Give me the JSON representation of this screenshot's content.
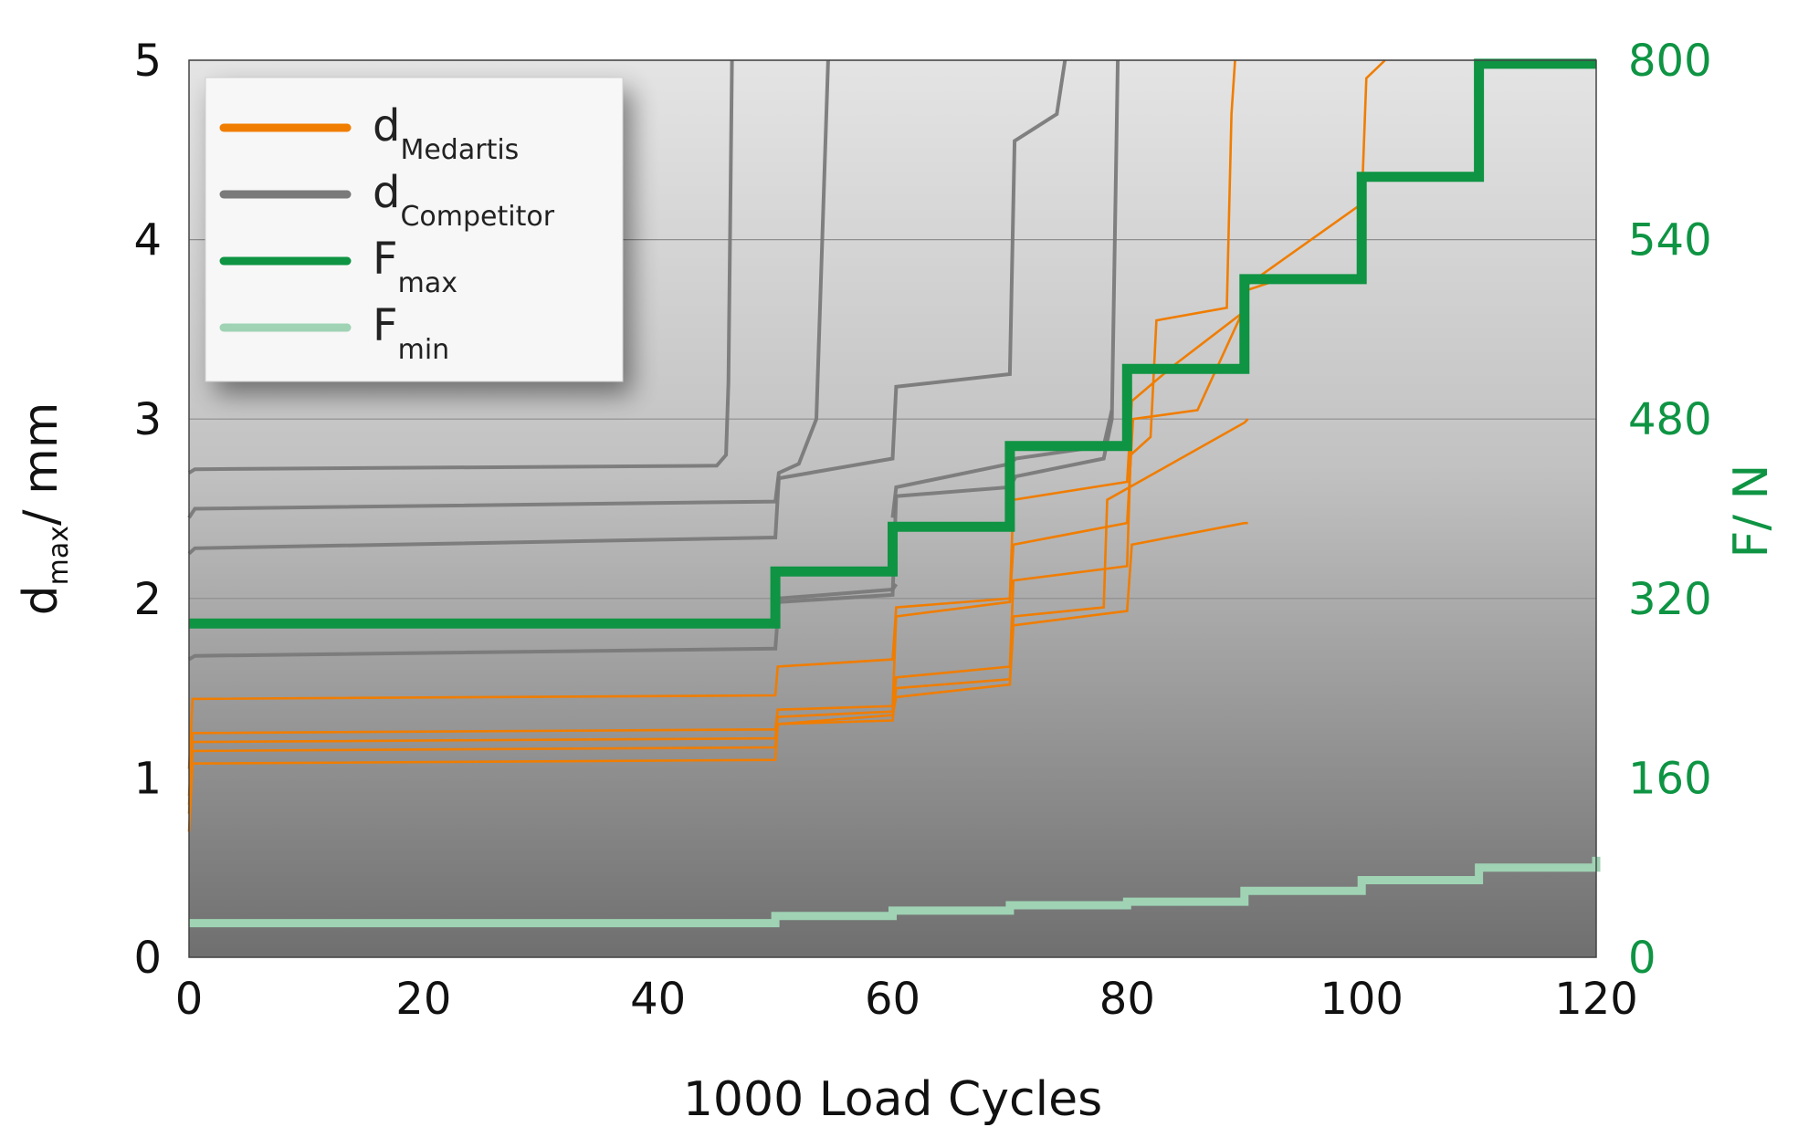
{
  "chart_data": {
    "type": "line",
    "xlabel": "1000 Load Cycles",
    "ylabel_main": "d",
    "ylabel_sub": "max",
    "ylabel_unit": "/ mm",
    "y2label": "F/ N",
    "xlim": [
      0,
      120
    ],
    "ylim": [
      0,
      5
    ],
    "y2lim": [
      0,
      800
    ],
    "x_ticks": [
      "0",
      "20",
      "40",
      "60",
      "80",
      "100",
      "120"
    ],
    "y_ticks": [
      "0",
      "1",
      "2",
      "3",
      "4",
      "5"
    ],
    "y2_ticks": [
      "0",
      "160",
      "320",
      "480",
      "540",
      "800"
    ],
    "grid": true,
    "legend_position": "top-left",
    "colors": {
      "medartis": "#f07d00",
      "competitor": "#7a7a7a",
      "fmax": "#0e9443",
      "fmin": "#9fd3b4",
      "right_axis": "#0e9443"
    },
    "legend": [
      {
        "main": "d",
        "sub": "Medartis",
        "key": "medartis"
      },
      {
        "main": "d",
        "sub": "Competitor",
        "key": "competitor"
      },
      {
        "main": "F",
        "sub": "max",
        "key": "fmax"
      },
      {
        "main": "F",
        "sub": "min",
        "key": "fmin"
      }
    ],
    "series": [
      {
        "group": "fmax",
        "step": true,
        "x": [
          0,
          50,
          60,
          70,
          80,
          90,
          100,
          110,
          120
        ],
        "y": [
          1.86,
          2.15,
          2.4,
          2.85,
          3.28,
          3.78,
          4.35,
          4.98,
          4.98
        ]
      },
      {
        "group": "fmin",
        "step": true,
        "x": [
          0,
          50,
          60,
          70,
          80,
          90,
          100,
          110,
          120
        ],
        "y": [
          0.19,
          0.23,
          0.26,
          0.29,
          0.31,
          0.37,
          0.43,
          0.5,
          0.56
        ]
      },
      {
        "group": "competitor",
        "x": [
          0,
          0.5,
          45,
          45.8,
          46,
          46.3
        ],
        "y": [
          2.7,
          2.72,
          2.74,
          2.8,
          3.2,
          5.0
        ]
      },
      {
        "group": "competitor",
        "x": [
          0,
          0.5,
          50,
          50.3,
          52,
          53.5,
          54.5
        ],
        "y": [
          2.45,
          2.5,
          2.54,
          2.7,
          2.75,
          3.0,
          5.0
        ]
      },
      {
        "group": "competitor",
        "x": [
          0,
          0.5,
          50,
          50.3,
          60,
          60.3,
          70,
          70.4,
          74,
          74.7
        ],
        "y": [
          2.25,
          2.28,
          2.34,
          2.67,
          2.78,
          3.18,
          3.25,
          4.55,
          4.7,
          5.0
        ]
      },
      {
        "group": "competitor",
        "x": [
          0,
          0.5,
          50,
          50.3,
          60,
          60.3,
          70,
          70.5,
          78,
          78.7,
          79.2
        ],
        "y": [
          1.66,
          1.68,
          1.72,
          1.98,
          2.02,
          2.57,
          2.62,
          2.68,
          2.78,
          3.0,
          5.0
        ]
      },
      {
        "group": "competitor",
        "x": [
          60,
          60.3,
          70,
          70.5,
          78,
          78.7
        ],
        "y": [
          2.45,
          2.62,
          2.75,
          2.78,
          2.85,
          3.05
        ]
      },
      {
        "group": "competitor",
        "x": [
          50,
          50.3,
          60,
          60.3
        ],
        "y": [
          2.1,
          2.0,
          2.05,
          2.08
        ]
      },
      {
        "group": "medartis",
        "x": [
          0,
          0.3,
          50,
          50.2,
          60,
          60.3,
          70,
          70.3,
          80,
          80.4,
          84,
          90,
          90.3,
          100,
          100.4,
          102
        ],
        "y": [
          1.05,
          1.44,
          1.46,
          1.62,
          1.66,
          1.95,
          2.0,
          2.55,
          2.65,
          3.1,
          3.3,
          3.6,
          3.75,
          4.2,
          4.9,
          5.0
        ]
      },
      {
        "group": "medartis",
        "x": [
          0,
          0.3,
          50,
          50.2,
          60,
          60.3,
          70,
          70.3,
          80,
          80.5,
          86,
          90,
          90.3,
          94
        ],
        "y": [
          0.9,
          1.25,
          1.27,
          1.38,
          1.4,
          1.9,
          1.98,
          2.3,
          2.42,
          3.0,
          3.05,
          3.62,
          3.72,
          3.8
        ]
      },
      {
        "group": "medartis",
        "x": [
          0,
          0.3,
          50,
          50.2,
          60,
          60.3,
          70,
          70.3,
          80,
          80.3,
          82,
          82.5,
          88.5,
          88.9,
          89.2
        ],
        "y": [
          0.85,
          1.2,
          1.22,
          1.34,
          1.37,
          1.56,
          1.62,
          2.1,
          2.18,
          2.8,
          2.9,
          3.55,
          3.62,
          4.7,
          5.0
        ]
      },
      {
        "group": "medartis",
        "x": [
          0,
          0.3,
          50,
          50.2,
          60,
          60.3,
          70,
          70.3,
          78,
          78.3,
          90,
          90.3
        ],
        "y": [
          0.8,
          1.15,
          1.17,
          1.3,
          1.32,
          1.5,
          1.55,
          1.9,
          1.95,
          2.55,
          2.98,
          3.0
        ]
      },
      {
        "group": "medartis",
        "x": [
          0,
          0.3,
          50,
          50.2,
          60,
          60.3,
          70,
          70.3,
          80,
          80.4,
          90,
          90.3
        ],
        "y": [
          0.7,
          1.08,
          1.1,
          1.3,
          1.35,
          1.45,
          1.52,
          1.85,
          1.93,
          2.3,
          2.42,
          2.42
        ]
      }
    ]
  }
}
